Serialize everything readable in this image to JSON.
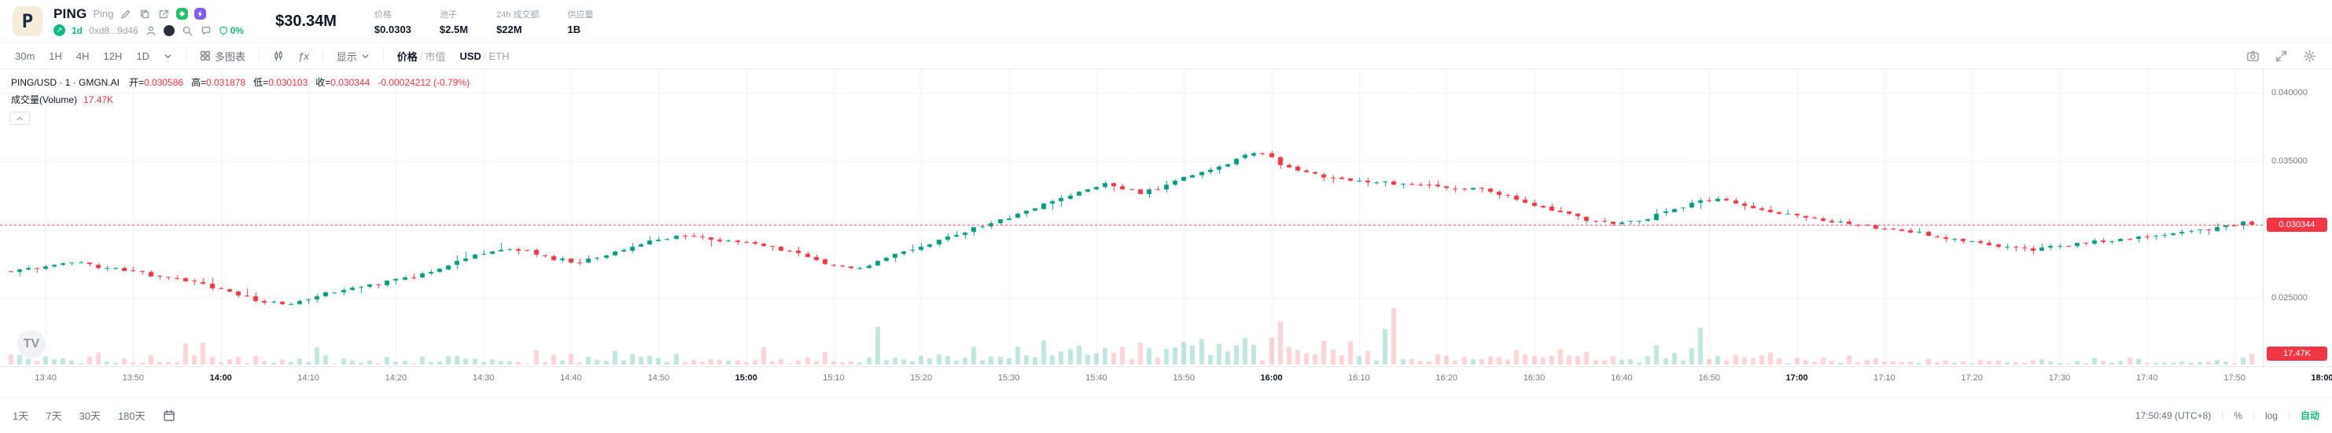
{
  "header": {
    "token": {
      "avatar_letter": "P",
      "symbol": "PING",
      "name": "Ping",
      "age": "1d",
      "contract": "0xd8...9d46",
      "safety": "0%"
    },
    "stats": {
      "market_cap": "$30.34M",
      "items": [
        {
          "label": "价格",
          "value": "$0.0303"
        },
        {
          "label": "池子",
          "value": "$2.5M"
        },
        {
          "label": "24h 成交额",
          "value": "$22M"
        },
        {
          "label": "供应量",
          "value": "1B"
        }
      ]
    }
  },
  "toolbar": {
    "timeframes": [
      "30m",
      "1H",
      "4H",
      "12H",
      "1D"
    ],
    "multi_chart_label": "多图表",
    "indicators_label": "ƒx",
    "display_label": "显示",
    "price_toggle": {
      "left": "价格",
      "right": "市值"
    },
    "currency_toggle": {
      "left": "USD",
      "right": "ETH"
    }
  },
  "chart": {
    "legend": {
      "title": "PING/USD · 1 · GMGN.AI",
      "open_label": "开=",
      "open": "0.030586",
      "high_label": "高=",
      "high": "0.031878",
      "low_label": "低=",
      "low": "0.030103",
      "close_label": "收=",
      "close": "0.030344",
      "change": "-0.00024212 (-0.79%)",
      "volume_title": "成交量(Volume)",
      "volume_value": "17.47K"
    },
    "watermark": "TV",
    "price_tag": "0.030344",
    "volume_tag": "17.47K"
  },
  "chart_data": {
    "type": "candlestick",
    "title": "PING/USD · 1 · GMGN.AI",
    "interval_minutes": 1,
    "x_start": "13:36",
    "x_end": "17:52",
    "y_ticks": [
      0.04,
      0.035,
      0.03,
      0.025
    ],
    "y_tick_labels": [
      "0.040000",
      "0.035000",
      "0.030000",
      "0.025000"
    ],
    "y_range": [
      0.02,
      0.0417
    ],
    "ohlc_current": {
      "open": 0.030586,
      "high": 0.031878,
      "low": 0.030103,
      "close": 0.030344,
      "change": -0.00024212,
      "change_pct": -0.79
    },
    "last_open": 0.030586,
    "last_price": 0.030344,
    "current_volume_k": 17.47,
    "up_color": "#089981",
    "down_color": "#f23645",
    "grid": true,
    "time_labels": [
      "13:40",
      "13:50",
      "14:00",
      "14:10",
      "14:20",
      "14:30",
      "14:40",
      "14:50",
      "15:00",
      "15:10",
      "15:20",
      "15:30",
      "15:40",
      "15:50",
      "16:00",
      "16:10",
      "16:20",
      "16:30",
      "16:40",
      "16:50",
      "17:00",
      "17:10",
      "17:20",
      "17:30",
      "17:40",
      "17:50",
      "18:00"
    ],
    "price_keypoints": [
      [
        "13:36",
        0.027
      ],
      [
        "13:39",
        0.0272
      ],
      [
        "13:41",
        0.02745
      ],
      [
        "13:43",
        0.02765
      ],
      [
        "13:45",
        0.0274
      ],
      [
        "13:47",
        0.02715
      ],
      [
        "13:50",
        0.027
      ],
      [
        "13:52",
        0.02665
      ],
      [
        "13:55",
        0.0265
      ],
      [
        "13:58",
        0.026
      ],
      [
        "14:01",
        0.02545
      ],
      [
        "14:04",
        0.0248
      ],
      [
        "14:07",
        0.02455
      ],
      [
        "14:09",
        0.02475
      ],
      [
        "14:12",
        0.0254
      ],
      [
        "14:15",
        0.02565
      ],
      [
        "14:18",
        0.026
      ],
      [
        "14:21",
        0.02645
      ],
      [
        "14:24",
        0.0269
      ],
      [
        "14:27",
        0.0276
      ],
      [
        "14:30",
        0.0283
      ],
      [
        "14:33",
        0.0286
      ],
      [
        "14:35",
        0.0284
      ],
      [
        "14:38",
        0.02785
      ],
      [
        "14:41",
        0.0276
      ],
      [
        "14:44",
        0.0281
      ],
      [
        "14:47",
        0.0287
      ],
      [
        "14:50",
        0.0293
      ],
      [
        "14:53",
        0.0296
      ],
      [
        "14:56",
        0.02925
      ],
      [
        "15:00",
        0.0291
      ],
      [
        "15:03",
        0.0287
      ],
      [
        "15:06",
        0.0282
      ],
      [
        "15:09",
        0.02745
      ],
      [
        "15:12",
        0.02705
      ],
      [
        "15:15",
        0.02765
      ],
      [
        "15:18",
        0.02835
      ],
      [
        "15:21",
        0.029
      ],
      [
        "15:24",
        0.02965
      ],
      [
        "15:27",
        0.0303
      ],
      [
        "15:30",
        0.0309
      ],
      [
        "15:33",
        0.0316
      ],
      [
        "15:36",
        0.0323
      ],
      [
        "15:39",
        0.033
      ],
      [
        "15:41",
        0.0334
      ],
      [
        "15:43",
        0.033
      ],
      [
        "15:45",
        0.0327
      ],
      [
        "15:47",
        0.033
      ],
      [
        "15:49",
        0.0336
      ],
      [
        "15:52",
        0.0342
      ],
      [
        "15:55",
        0.0348
      ],
      [
        "15:57",
        0.0354
      ],
      [
        "15:59",
        0.0356
      ],
      [
        "16:01",
        0.0348
      ],
      [
        "16:03",
        0.0343
      ],
      [
        "16:06",
        0.0339
      ],
      [
        "16:09",
        0.0336
      ],
      [
        "16:12",
        0.0335
      ],
      [
        "16:15",
        0.0333
      ],
      [
        "16:18",
        0.0332
      ],
      [
        "16:21",
        0.033
      ],
      [
        "16:24",
        0.0329
      ],
      [
        "16:27",
        0.0325
      ],
      [
        "16:30",
        0.0318
      ],
      [
        "16:33",
        0.0312
      ],
      [
        "16:36",
        0.0307
      ],
      [
        "16:39",
        0.0304
      ],
      [
        "16:42",
        0.0306
      ],
      [
        "16:45",
        0.0313
      ],
      [
        "16:48",
        0.0319
      ],
      [
        "16:51",
        0.0322
      ],
      [
        "16:54",
        0.0317
      ],
      [
        "16:57",
        0.0313
      ],
      [
        "17:00",
        0.031
      ],
      [
        "17:03",
        0.0307
      ],
      [
        "17:06",
        0.0304
      ],
      [
        "17:09",
        0.0301
      ],
      [
        "17:12",
        0.02995
      ],
      [
        "17:15",
        0.0296
      ],
      [
        "17:18",
        0.0293
      ],
      [
        "17:21",
        0.029
      ],
      [
        "17:24",
        0.0287
      ],
      [
        "17:27",
        0.02845
      ],
      [
        "17:30",
        0.0288
      ],
      [
        "17:33",
        0.02905
      ],
      [
        "17:36",
        0.0292
      ],
      [
        "17:39",
        0.0294
      ],
      [
        "17:42",
        0.0296
      ],
      [
        "17:45",
        0.02985
      ],
      [
        "17:48",
        0.0301
      ],
      [
        "17:50",
        0.0303
      ],
      [
        "17:52",
        0.030344
      ]
    ]
  },
  "bottom_bar": {
    "ranges": [
      "1天",
      "7天",
      "30天",
      "180天"
    ],
    "time": "17:50:49 (UTC+8)",
    "percent_label": "%",
    "log_label": "log",
    "auto_label": "自动"
  }
}
